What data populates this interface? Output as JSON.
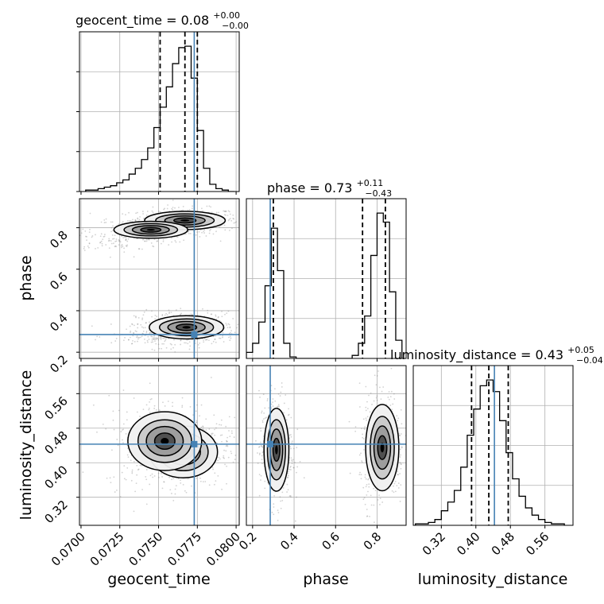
{
  "chart_data": {
    "type": "corner",
    "parameters": [
      "geocent_time",
      "phase",
      "luminosity_distance"
    ],
    "ranges": {
      "geocent_time": [
        0.0699,
        0.0802
      ],
      "phase": [
        0.17,
        0.94
      ],
      "luminosity_distance": [
        0.255,
        0.625
      ]
    },
    "injection": {
      "geocent_time": 0.0773,
      "phase": 0.285,
      "luminosity_distance": 0.443
    },
    "titles": {
      "geocent_time": {
        "name": "geocent_time",
        "value": "0.08",
        "plus": "+0.00",
        "minus": "−0.00"
      },
      "phase": {
        "name": "phase",
        "value": "0.73",
        "plus": "+0.11",
        "minus": "−0.43"
      },
      "luminosity_distance": {
        "name": "luminosity_distance",
        "value": "0.43",
        "plus": "+0.05",
        "minus": "−0.04"
      }
    },
    "axis_labels": {
      "x": [
        "geocent_time",
        "phase",
        "luminosity_distance"
      ],
      "y": [
        "phase",
        "luminosity_distance"
      ]
    },
    "tick_labels": {
      "geocent_time": [
        "0.0700",
        "0.0725",
        "0.0750",
        "0.0775",
        "0.0800"
      ],
      "phase_x": [
        "0.2",
        "0.4",
        "0.6",
        "0.8"
      ],
      "phase_y": [
        "0.2",
        "0.4",
        "0.6",
        "0.8"
      ],
      "luminosity_distance": [
        "0.32",
        "0.40",
        "0.48",
        "0.56"
      ]
    },
    "quantiles": {
      "geocent_time": [
        0.0751,
        0.0767,
        0.0775
      ],
      "phase": [
        0.3,
        0.73,
        0.84
      ],
      "luminosity_distance": [
        0.39,
        0.43,
        0.475
      ]
    },
    "histograms": {
      "geocent_time": {
        "bins": [
          0.0703,
          0.0707,
          0.0711,
          0.0715,
          0.0719,
          0.0723,
          0.0727,
          0.0731,
          0.0735,
          0.0739,
          0.0743,
          0.0747,
          0.0751,
          0.0755,
          0.0759,
          0.0763,
          0.0767,
          0.0771,
          0.0775,
          0.0779,
          0.0783,
          0.0787,
          0.0791,
          0.0795,
          0.0799
        ],
        "counts": [
          1,
          1,
          2,
          3,
          4,
          6,
          8,
          12,
          16,
          22,
          30,
          44,
          58,
          72,
          88,
          99,
          100,
          78,
          42,
          16,
          5,
          2,
          1,
          0
        ]
      },
      "phase": {
        "bins": [
          0.17,
          0.2,
          0.23,
          0.26,
          0.29,
          0.32,
          0.35,
          0.38,
          0.41,
          0.44,
          0.47,
          0.5,
          0.53,
          0.56,
          0.59,
          0.62,
          0.65,
          0.68,
          0.71,
          0.74,
          0.77,
          0.8,
          0.83,
          0.86,
          0.89,
          0.92
        ],
        "counts": [
          4,
          10,
          24,
          48,
          86,
          58,
          10,
          1,
          0,
          0,
          0,
          0,
          0,
          0,
          0,
          0,
          0,
          2,
          10,
          28,
          68,
          96,
          90,
          44,
          12
        ]
      },
      "luminosity_distance": {
        "bins": [
          0.26,
          0.275,
          0.29,
          0.305,
          0.32,
          0.335,
          0.35,
          0.365,
          0.38,
          0.395,
          0.41,
          0.425,
          0.44,
          0.455,
          0.47,
          0.485,
          0.5,
          0.515,
          0.53,
          0.545,
          0.56,
          0.575,
          0.59,
          0.605
        ],
        "counts": [
          1,
          1,
          2,
          4,
          10,
          16,
          24,
          40,
          62,
          80,
          96,
          100,
          92,
          72,
          50,
          32,
          20,
          12,
          7,
          4,
          2,
          1,
          1
        ]
      }
    },
    "blobs": {
      "geocent_time_vs_phase": [
        {
          "cx": 0.0767,
          "cy": 0.835,
          "sx": 0.0013,
          "sy": 0.022,
          "w": 1.0
        },
        {
          "cx": 0.0745,
          "cy": 0.79,
          "sx": 0.0014,
          "sy": 0.024,
          "w": 0.55
        },
        {
          "cx": 0.0722,
          "cy": 0.735,
          "sx": 0.0012,
          "sy": 0.02,
          "w": 0.2
        },
        {
          "cx": 0.0768,
          "cy": 0.32,
          "sx": 0.0012,
          "sy": 0.028,
          "w": 1.0
        },
        {
          "cx": 0.0752,
          "cy": 0.275,
          "sx": 0.0012,
          "sy": 0.018,
          "w": 0.35
        }
      ],
      "geocent_time_vs_luminosity_distance": [
        {
          "cx": 0.0766,
          "cy": 0.425,
          "sx": 0.0011,
          "sy": 0.03,
          "w": 1.0
        },
        {
          "cx": 0.0754,
          "cy": 0.45,
          "sx": 0.0014,
          "sy": 0.04,
          "w": 0.7
        }
      ],
      "phase_vs_luminosity_distance": [
        {
          "cx": 0.315,
          "cy": 0.43,
          "sx": 0.03,
          "sy": 0.048,
          "w": 1.0
        },
        {
          "cx": 0.825,
          "cy": 0.435,
          "sx": 0.04,
          "sy": 0.05,
          "w": 1.0
        }
      ]
    },
    "colors": {
      "injection": "#4682b4",
      "histogram": "#000000",
      "scatter": "#7f7f7f",
      "grid": "#b0b0b0"
    },
    "grid": true
  }
}
